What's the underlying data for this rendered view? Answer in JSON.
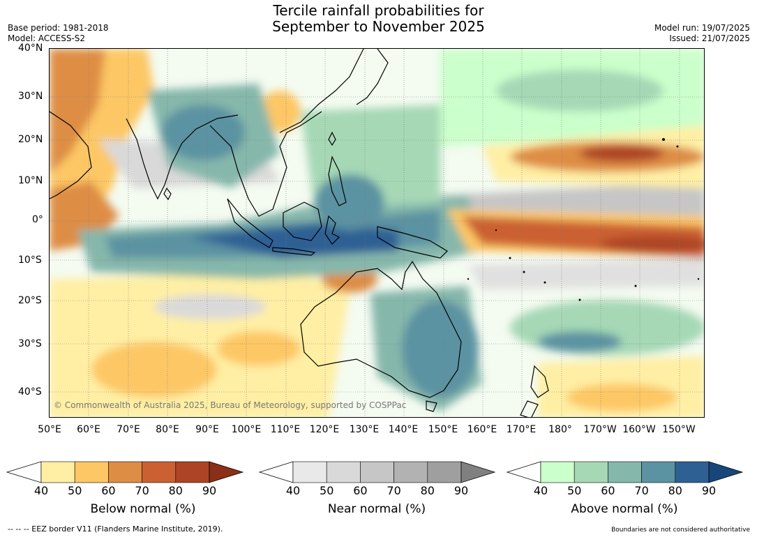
{
  "title_line1": "Tercile rainfall probabilities for",
  "title_line2": "September to November 2025",
  "meta": {
    "base_period": "Base period: 1981-2018",
    "model": "Model: ACCESS-S2",
    "model_run": "Model run: 19/07/2025",
    "issued": "Issued: 21/07/2025"
  },
  "map": {
    "lat_labels": [
      "40°N",
      "30°N",
      "20°N",
      "10°N",
      "0°",
      "10°S",
      "20°S",
      "30°S",
      "40°S"
    ],
    "lon_labels": [
      "50°E",
      "60°E",
      "70°E",
      "80°E",
      "90°E",
      "100°E",
      "110°E",
      "120°E",
      "130°E",
      "140°E",
      "150°E",
      "160°E",
      "170°E",
      "180°",
      "170°W",
      "160°W",
      "150°W"
    ],
    "copyright": "© Commonwealth of Australia 2025, Bureau of Meteorology, supported by COSPPac",
    "colors": {
      "ocean_bg": "#f4fbf1",
      "coast": "#000000"
    }
  },
  "colorbars": [
    {
      "id": "below",
      "title": "Below normal (%)",
      "ticks": [
        "40",
        "50",
        "60",
        "70",
        "80",
        "90"
      ],
      "colors": [
        "#ffefa4",
        "#fdc765",
        "#de8d45",
        "#cb6133",
        "#ad4425",
        "#8a2f18"
      ]
    },
    {
      "id": "near",
      "title": "Near normal (%)",
      "ticks": [
        "40",
        "50",
        "60",
        "70",
        "80",
        "90"
      ],
      "colors": [
        "#e9e9e9",
        "#d9d9d9",
        "#c6c6c6",
        "#b2b2b2",
        "#9f9f9f",
        "#808080"
      ]
    },
    {
      "id": "above",
      "title": "Above normal (%)",
      "ticks": [
        "40",
        "50",
        "60",
        "70",
        "80",
        "90"
      ],
      "colors": [
        "#cbffcb",
        "#a6d8b6",
        "#86b7ab",
        "#5c93a2",
        "#2f6094",
        "#17467a"
      ]
    }
  ],
  "footer": {
    "eez": "-- -- -- EEZ border V11 (Flanders Marine Institute, 2019).",
    "disclaimer": "Boundaries are not considered authoritative"
  }
}
